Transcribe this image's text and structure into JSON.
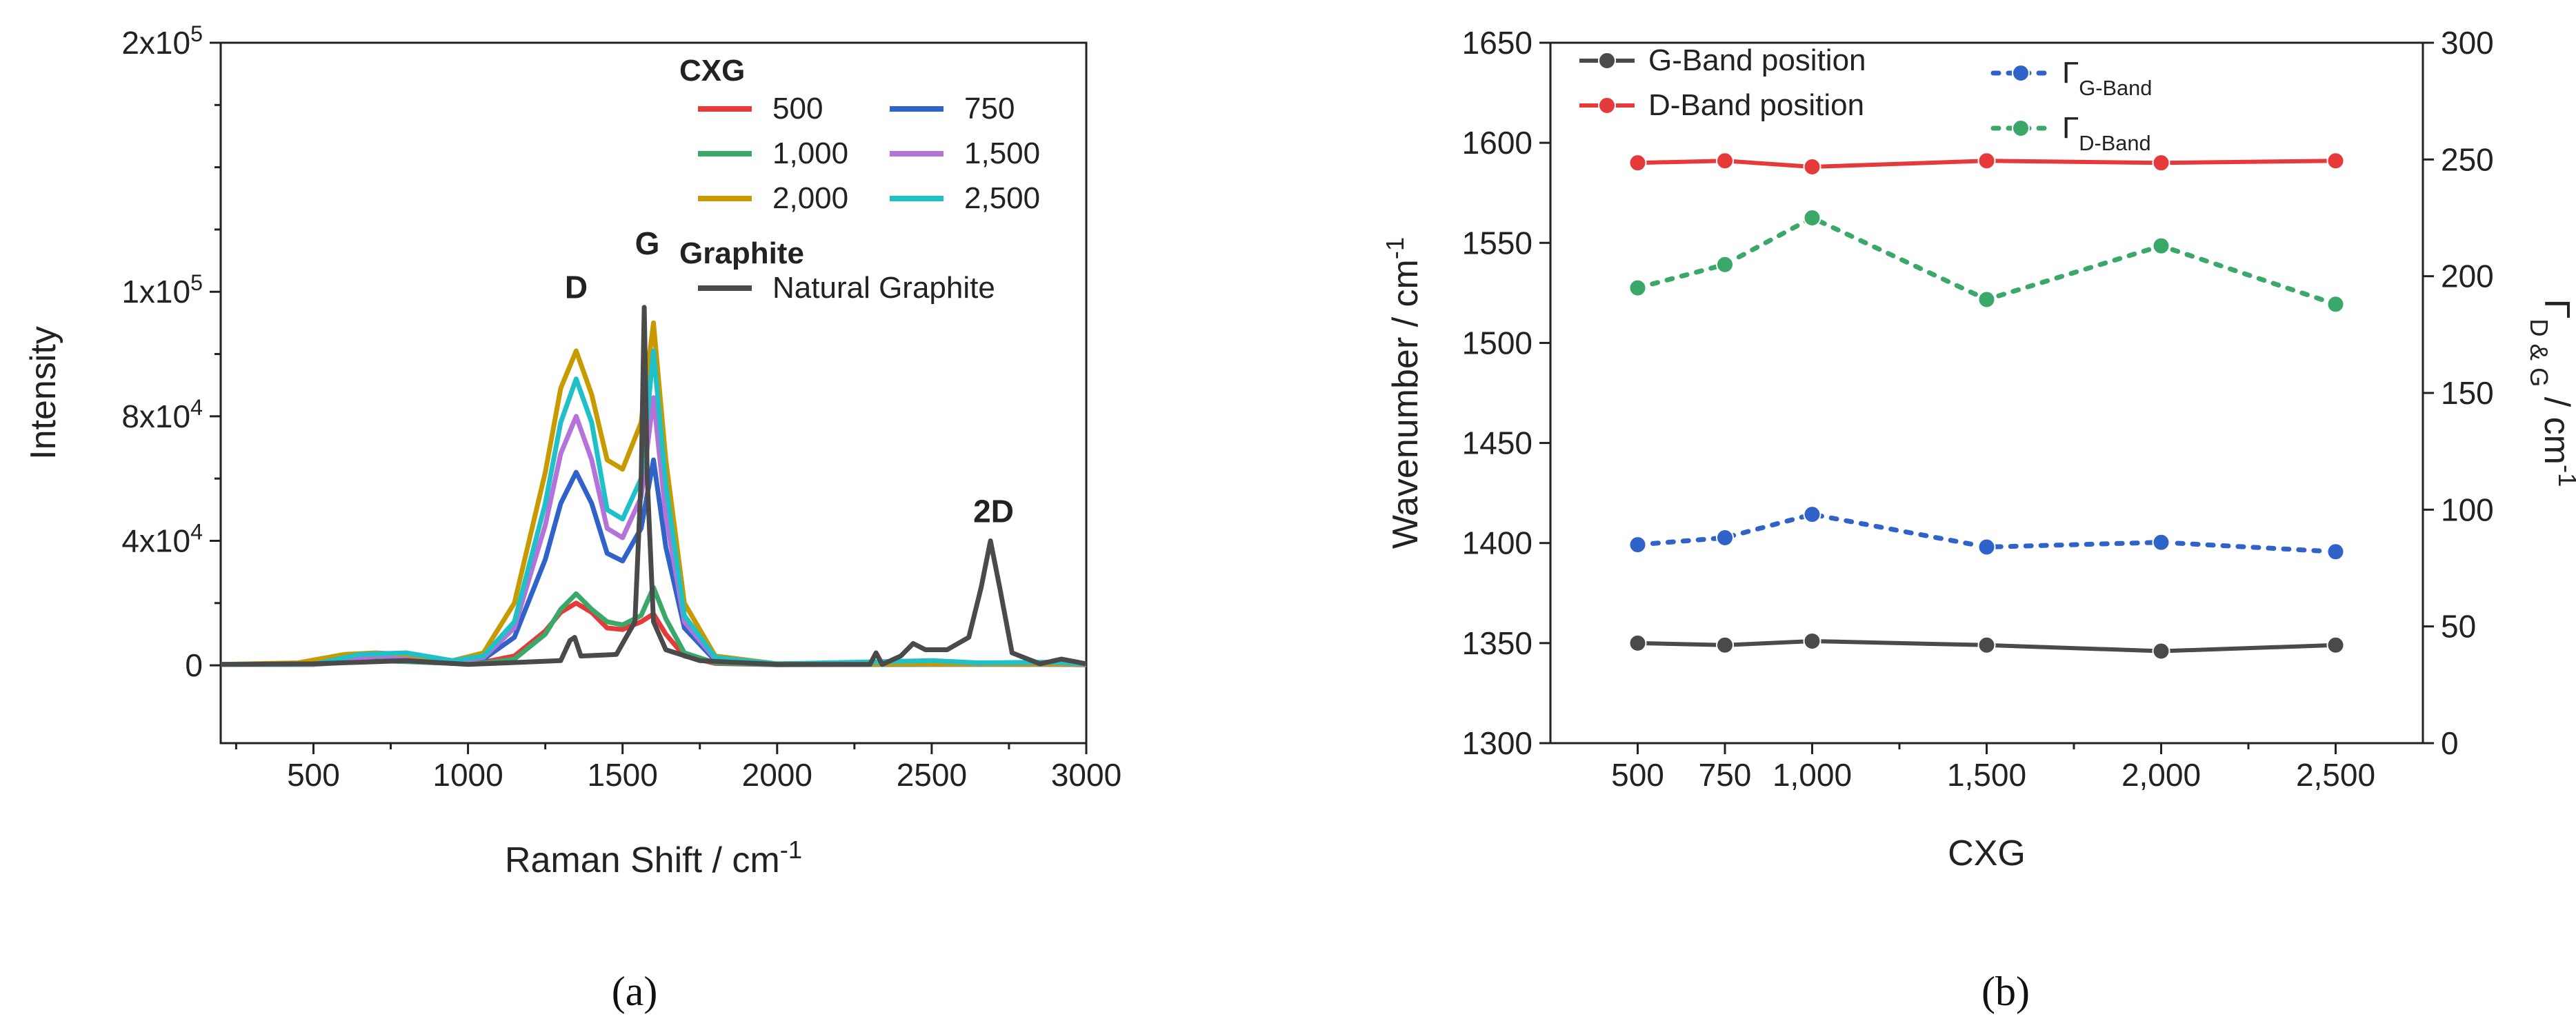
{
  "panels": {
    "a_label": "(a)",
    "b_label": "(b)"
  },
  "chart_data": [
    {
      "type": "line",
      "panel": "(a)",
      "title": "",
      "xlabel": "Raman Shift / cm",
      "xlabel_sup": "-1",
      "ylabel": "Intensity",
      "xlim": [
        200,
        3000
      ],
      "ylim": [
        -25000,
        200000
      ],
      "xticks": [
        500,
        1000,
        1500,
        2000,
        2500,
        3000
      ],
      "yticks": [
        {
          "value": 0,
          "base": "0",
          "exp": ""
        },
        {
          "value": 40000,
          "base": "4x10",
          "exp": "4"
        },
        {
          "value": 80000,
          "base": "8x10",
          "exp": "4"
        },
        {
          "value": 120000,
          "base": "1x10",
          "exp": "5"
        },
        {
          "value": 200000,
          "base": "2x10",
          "exp": "5"
        }
      ],
      "legend": {
        "title_cxg": "CXG",
        "title_graphite": "Graphite",
        "placement": "top-right"
      },
      "annotations": [
        {
          "text": "D",
          "x": 1350,
          "y": 118000
        },
        {
          "text": "G",
          "x": 1580,
          "y": 132000
        },
        {
          "text": "2D",
          "x": 2700,
          "y": 46000
        }
      ],
      "series": [
        {
          "name": "500",
          "color": "#e6393a",
          "points": [
            [
              200,
              300
            ],
            [
              500,
              300
            ],
            [
              700,
              2500
            ],
            [
              800,
              2000
            ],
            [
              950,
              800
            ],
            [
              1050,
              1000
            ],
            [
              1150,
              3000
            ],
            [
              1250,
              11000
            ],
            [
              1300,
              17000
            ],
            [
              1350,
              20000
            ],
            [
              1400,
              17000
            ],
            [
              1450,
              12000
            ],
            [
              1500,
              11500
            ],
            [
              1560,
              14000
            ],
            [
              1600,
              16500
            ],
            [
              1640,
              10000
            ],
            [
              1700,
              3000
            ],
            [
              1800,
              600
            ],
            [
              2000,
              200
            ],
            [
              2500,
              300
            ],
            [
              2900,
              300
            ],
            [
              3000,
              200
            ]
          ]
        },
        {
          "name": "750",
          "color": "#2f63c9",
          "points": [
            [
              200,
              300
            ],
            [
              500,
              300
            ],
            [
              700,
              3000
            ],
            [
              800,
              2500
            ],
            [
              950,
              1000
            ],
            [
              1050,
              2000
            ],
            [
              1150,
              9000
            ],
            [
              1250,
              34000
            ],
            [
              1300,
              52000
            ],
            [
              1350,
              62000
            ],
            [
              1400,
              52000
            ],
            [
              1450,
              36000
            ],
            [
              1500,
              33500
            ],
            [
              1560,
              44000
            ],
            [
              1600,
              66000
            ],
            [
              1640,
              38000
            ],
            [
              1700,
              12000
            ],
            [
              1800,
              1500
            ],
            [
              2000,
              300
            ],
            [
              2500,
              400
            ],
            [
              2900,
              400
            ],
            [
              3000,
              300
            ]
          ]
        },
        {
          "name": "1,000",
          "color": "#3aa869",
          "points": [
            [
              200,
              300
            ],
            [
              500,
              300
            ],
            [
              700,
              1500
            ],
            [
              800,
              1200
            ],
            [
              950,
              600
            ],
            [
              1050,
              700
            ],
            [
              1150,
              2000
            ],
            [
              1250,
              10000
            ],
            [
              1300,
              18000
            ],
            [
              1350,
              23000
            ],
            [
              1400,
              18000
            ],
            [
              1450,
              14000
            ],
            [
              1500,
              13000
            ],
            [
              1560,
              16000
            ],
            [
              1600,
              25000
            ],
            [
              1640,
              15000
            ],
            [
              1700,
              4000
            ],
            [
              1800,
              800
            ],
            [
              2000,
              200
            ],
            [
              2500,
              300
            ],
            [
              2900,
              300
            ],
            [
              3000,
              200
            ]
          ]
        },
        {
          "name": "1,500",
          "color": "#b572d9",
          "points": [
            [
              200,
              300
            ],
            [
              500,
              300
            ],
            [
              700,
              3000
            ],
            [
              800,
              3000
            ],
            [
              950,
              1000
            ],
            [
              1050,
              2500
            ],
            [
              1150,
              12000
            ],
            [
              1250,
              45000
            ],
            [
              1300,
              68000
            ],
            [
              1350,
              80000
            ],
            [
              1400,
              66000
            ],
            [
              1450,
              44000
            ],
            [
              1500,
              41000
            ],
            [
              1560,
              54000
            ],
            [
              1600,
              86000
            ],
            [
              1640,
              48000
            ],
            [
              1700,
              14000
            ],
            [
              1800,
              2000
            ],
            [
              2000,
              400
            ],
            [
              2500,
              400
            ],
            [
              2900,
              400
            ],
            [
              3000,
              300
            ]
          ]
        },
        {
          "name": "2,000",
          "color": "#c79a00",
          "points": [
            [
              200,
              300
            ],
            [
              450,
              800
            ],
            [
              600,
              3500
            ],
            [
              700,
              4000
            ],
            [
              800,
              3500
            ],
            [
              950,
              1500
            ],
            [
              1050,
              4000
            ],
            [
              1150,
              20000
            ],
            [
              1250,
              62000
            ],
            [
              1300,
              89000
            ],
            [
              1350,
              101000
            ],
            [
              1400,
              87000
            ],
            [
              1450,
              66000
            ],
            [
              1500,
              63000
            ],
            [
              1560,
              78000
            ],
            [
              1600,
              110000
            ],
            [
              1640,
              66000
            ],
            [
              1700,
              20000
            ],
            [
              1800,
              3000
            ],
            [
              2000,
              500
            ],
            [
              2500,
              500
            ],
            [
              2900,
              500
            ],
            [
              3000,
              400
            ]
          ]
        },
        {
          "name": "2,500",
          "color": "#1fc0c8",
          "points": [
            [
              200,
              300
            ],
            [
              500,
              400
            ],
            [
              650,
              3500
            ],
            [
              800,
              4000
            ],
            [
              950,
              1500
            ],
            [
              1050,
              3000
            ],
            [
              1150,
              14000
            ],
            [
              1250,
              52000
            ],
            [
              1300,
              78000
            ],
            [
              1350,
              92000
            ],
            [
              1400,
              78000
            ],
            [
              1450,
              50000
            ],
            [
              1500,
              47000
            ],
            [
              1560,
              60000
            ],
            [
              1600,
              101000
            ],
            [
              1640,
              58000
            ],
            [
              1700,
              16000
            ],
            [
              1800,
              2500
            ],
            [
              2000,
              500
            ],
            [
              2500,
              1500
            ],
            [
              2650,
              800
            ],
            [
              2900,
              1000
            ],
            [
              3000,
              500
            ]
          ]
        },
        {
          "name": "Natural Graphite",
          "color": "#4a4a4a",
          "points": [
            [
              200,
              300
            ],
            [
              500,
              500
            ],
            [
              800,
              1500
            ],
            [
              1000,
              300
            ],
            [
              1300,
              1500
            ],
            [
              1330,
              8000
            ],
            [
              1345,
              9000
            ],
            [
              1365,
              3000
            ],
            [
              1480,
              3500
            ],
            [
              1540,
              14000
            ],
            [
              1560,
              60000
            ],
            [
              1570,
              115000
            ],
            [
              1580,
              60000
            ],
            [
              1600,
              14000
            ],
            [
              1640,
              5000
            ],
            [
              1750,
              1500
            ],
            [
              2000,
              300
            ],
            [
              2300,
              300
            ],
            [
              2320,
              4000
            ],
            [
              2340,
              300
            ],
            [
              2400,
              3000
            ],
            [
              2440,
              7000
            ],
            [
              2480,
              5000
            ],
            [
              2550,
              5000
            ],
            [
              2620,
              9000
            ],
            [
              2660,
              25000
            ],
            [
              2690,
              40000
            ],
            [
              2720,
              25000
            ],
            [
              2760,
              4000
            ],
            [
              2850,
              500
            ],
            [
              2920,
              2000
            ],
            [
              3000,
              500
            ]
          ]
        }
      ]
    },
    {
      "type": "line",
      "panel": "(b)",
      "title": "",
      "xlabel": "CXG",
      "ylabel": "Wavenumber / cm",
      "ylabel_sup": "-1",
      "y2label": "Γ",
      "y2label_sub": "D & G",
      "y2label_tail": " / cm",
      "y2label_sup": "-1",
      "categories": [
        "500",
        "750",
        "1,000",
        "1,500",
        "2,000",
        "2,500"
      ],
      "x": [
        500,
        750,
        1000,
        1500,
        2000,
        2500
      ],
      "xlim": [
        250,
        2750
      ],
      "ylim": [
        1300,
        1650
      ],
      "y2lim": [
        0,
        300
      ],
      "yticks": [
        1300,
        1350,
        1400,
        1450,
        1500,
        1550,
        1600,
        1650
      ],
      "y2ticks": [
        0,
        50,
        100,
        150,
        200,
        250,
        300
      ],
      "legend_placement": "top",
      "series": [
        {
          "name": "G-Band position",
          "axis": "left",
          "style": "solid",
          "color": "#4a4a4a",
          "values": [
            1350,
            1349,
            1351,
            1349,
            1346,
            1349
          ]
        },
        {
          "name": "D-Band position",
          "axis": "left",
          "style": "solid",
          "color": "#e6393a",
          "values": [
            1590,
            1591,
            1588,
            1591,
            1590,
            1591
          ]
        },
        {
          "name": "Γ",
          "name_sub": "G-Band",
          "axis": "right",
          "style": "dotted",
          "color": "#2f63c9",
          "values": [
            85,
            88,
            98,
            84,
            86,
            82
          ]
        },
        {
          "name": "Γ",
          "name_sub": "D-Band",
          "axis": "right",
          "style": "dotted",
          "color": "#3aa869",
          "values": [
            195,
            205,
            225,
            190,
            213,
            188
          ]
        }
      ]
    }
  ]
}
